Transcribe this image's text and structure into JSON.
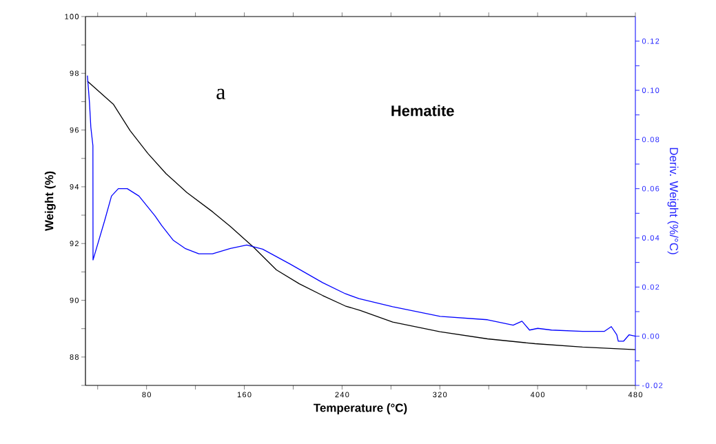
{
  "chart_data": {
    "type": "line",
    "xlabel": "Temperature (°C)",
    "ylabel": "Weight (%)",
    "y2label": "Deriv. Weight (%/°C)",
    "annotations": [
      "a",
      "Hematite"
    ],
    "xlim": [
      30,
      480
    ],
    "xticks": [
      {
        "value": 40,
        "label": null
      },
      80,
      {
        "value": 120,
        "label": null
      },
      160,
      {
        "value": 200,
        "label": null
      },
      240,
      {
        "value": 280,
        "label": null
      },
      320,
      {
        "value": 360,
        "label": null
      },
      400,
      {
        "value": 440,
        "label": null
      },
      480
    ],
    "ylim": [
      87,
      100
    ],
    "yticks": [
      {
        "value": 87,
        "label": null
      },
      88,
      {
        "value": 89,
        "label": null
      },
      90,
      {
        "value": 91,
        "label": null
      },
      92,
      {
        "value": 93,
        "label": null
      },
      94,
      {
        "value": 95,
        "label": null
      },
      96,
      {
        "value": 97,
        "label": null
      },
      98,
      {
        "value": 99,
        "label": null
      },
      100
    ],
    "y2lim": [
      -0.02,
      0.13
    ],
    "y2ticks": [
      -0.02,
      {
        "value": -0.01,
        "label": null
      },
      {
        "value": 0,
        "label": "0.00"
      },
      {
        "value": 0.01,
        "label": null
      },
      0.02,
      {
        "value": 0.03,
        "label": null
      },
      0.04,
      {
        "value": 0.05,
        "label": null
      },
      0.06,
      {
        "value": 0.07,
        "label": null
      },
      0.08,
      {
        "value": 0.09,
        "label": null
      },
      {
        "value": 0.1,
        "label": "0.10"
      },
      {
        "value": 0.11,
        "label": null
      },
      0.12
    ],
    "series": [
      {
        "color": "#000000",
        "x": [
          31.6,
          53,
          66.5,
          81,
          96,
          113,
          134,
          148.6,
          167.8,
          186.3,
          205,
          224,
          242.6,
          255,
          281.4,
          320,
          359,
          398,
          436.7,
          480
        ],
        "values": [
          97.72,
          96.9,
          95.98,
          95.18,
          94.46,
          93.8,
          93.12,
          92.6,
          91.86,
          91.07,
          90.58,
          90.17,
          89.8,
          89.64,
          89.23,
          88.89,
          88.64,
          88.47,
          88.35,
          88.26
        ]
      },
      {
        "color": "#0000ff",
        "axis": "y2",
        "x": [
          31.6,
          33.3,
          34.4,
          36.1,
          36.2,
          45.7,
          51.3,
          56.9,
          64.2,
          73.8,
          86.8,
          92.4,
          101.9,
          111.5,
          122.8,
          134,
          148.6,
          162,
          175,
          197.6,
          224,
          242.6,
          253.8,
          281.4,
          320.2,
          359,
          380,
          387.2,
          393.4,
          400.1,
          411.4,
          436.7,
          454.7,
          460.3,
          464.8,
          466,
          470.4,
          474.9,
          480
        ],
        "values": [
          0.106,
          0.095,
          0.085,
          0.0775,
          0.031,
          0.047,
          0.057,
          0.06,
          0.06,
          0.057,
          0.049,
          0.045,
          0.039,
          0.0357,
          0.0335,
          0.0335,
          0.0357,
          0.0371,
          0.0354,
          0.0293,
          0.0218,
          0.0173,
          0.0153,
          0.012,
          0.0081,
          0.0067,
          0.0045,
          0.0061,
          0.0025,
          0.0032,
          0.0025,
          0.002,
          0.002,
          0.0039,
          0.0006,
          -0.002,
          -0.002,
          0.0006,
          0
        ]
      }
    ]
  }
}
